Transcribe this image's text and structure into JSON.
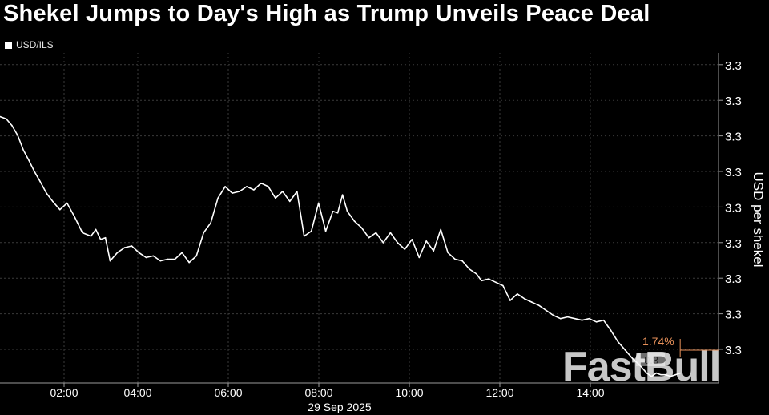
{
  "title": "Shekel Jumps to Day's High as Trump Unveils Peace Deal",
  "colors": {
    "background": "#000000",
    "line": "#ffffff",
    "grid": "#3a3a3a",
    "axis": "#9a9a9a",
    "annotation": "#e8915a"
  },
  "watermark": "FastBull",
  "chart_data": {
    "type": "line",
    "title": "Shekel Jumps to Day's High as Trump Unveils Peace Deal",
    "ylabel": "USD per shekel",
    "xlabel_date": "29 Sep 2025",
    "x_ticks": [
      "02:00",
      "04:00",
      "06:00",
      "08:00",
      "10:00",
      "12:00",
      "14:00"
    ],
    "y_ticks": [
      "3.3",
      "3.3",
      "3.3",
      "3.3",
      "3.3",
      "3.3",
      "3.3",
      "3.3",
      "3.3"
    ],
    "grid": true,
    "legend_position": "top-left",
    "xlim": [
      1.0,
      16.0
    ],
    "ylim": [
      0.0,
      10.0
    ],
    "last_value_label": "1.74%",
    "last_value_box": "0.3",
    "series": [
      {
        "name": "USD/ILS",
        "x": [
          1.0,
          1.13,
          1.25,
          1.37,
          1.49,
          1.6,
          1.72,
          1.84,
          1.97,
          2.1,
          2.25,
          2.4,
          2.55,
          2.72,
          2.9,
          3.0,
          3.1,
          3.2,
          3.3,
          3.45,
          3.6,
          3.75,
          3.9,
          4.05,
          4.2,
          4.35,
          4.5,
          4.65,
          4.8,
          4.95,
          5.1,
          5.25,
          5.4,
          5.55,
          5.7,
          5.85,
          6.0,
          6.15,
          6.3,
          6.45,
          6.6,
          6.75,
          6.9,
          7.05,
          7.2,
          7.35,
          7.5,
          7.65,
          7.8,
          7.95,
          8.05,
          8.15,
          8.25,
          8.4,
          8.55,
          8.7,
          8.85,
          9.0,
          9.15,
          9.3,
          9.45,
          9.6,
          9.75,
          9.9,
          10.05,
          10.2,
          10.35,
          10.5,
          10.65,
          10.8,
          10.95,
          11.05,
          11.2,
          11.35,
          11.5,
          11.65,
          11.8,
          11.95,
          12.1,
          12.25,
          12.4,
          12.55,
          12.7,
          12.85,
          13.0,
          13.15,
          13.3,
          13.45,
          13.6,
          13.75,
          13.9,
          14.05,
          14.2,
          14.35,
          14.5,
          14.6,
          14.7,
          14.8,
          14.9,
          15.0,
          15.1,
          15.2
        ],
        "values": [
          8.07,
          8.0,
          7.8,
          7.5,
          7.05,
          6.75,
          6.4,
          6.1,
          5.75,
          5.5,
          5.25,
          5.45,
          5.05,
          4.55,
          4.45,
          4.65,
          4.35,
          4.4,
          3.7,
          3.95,
          4.1,
          4.15,
          3.95,
          3.8,
          3.85,
          3.7,
          3.75,
          3.75,
          3.95,
          3.65,
          3.85,
          4.55,
          4.85,
          5.6,
          5.95,
          5.75,
          5.8,
          5.95,
          5.85,
          6.05,
          5.95,
          5.6,
          5.8,
          5.5,
          5.8,
          4.45,
          4.6,
          5.45,
          4.6,
          5.2,
          5.15,
          5.7,
          5.2,
          4.9,
          4.7,
          4.4,
          4.55,
          4.25,
          4.55,
          4.25,
          4.05,
          4.35,
          3.8,
          4.3,
          4.0,
          4.65,
          3.95,
          3.75,
          3.7,
          3.45,
          3.3,
          3.1,
          3.15,
          3.05,
          2.95,
          2.5,
          2.7,
          2.55,
          2.45,
          2.35,
          2.2,
          2.05,
          1.95,
          2.0,
          1.95,
          1.9,
          1.95,
          1.85,
          1.9,
          1.6,
          1.25,
          1.0,
          0.75,
          0.55,
          0.3,
          0.2,
          0.3,
          0.25,
          0.25,
          0.2,
          0.25,
          0.3
        ]
      }
    ]
  }
}
